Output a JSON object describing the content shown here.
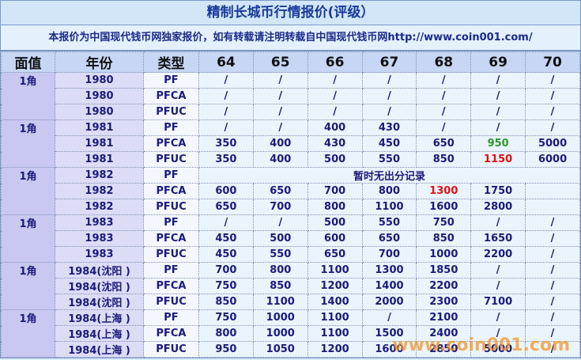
{
  "title": "精制长城币行情报价(评级）",
  "notice": "本报价为中国现代钱币网独家报价，如有转载请注明转载自中国现代钱币网http://www.coin001.com/",
  "header": [
    "面值",
    "年份",
    "类型",
    "64",
    "65",
    "66",
    "67",
    "68",
    "69",
    "70"
  ],
  "watermark": "www.coin001.com",
  "groups": [
    {
      "denomination": "1角",
      "rows": [
        {
          "year": "1980",
          "type": "PF",
          "cells": [
            "/",
            "/",
            "/",
            "/",
            "/",
            "/",
            "/"
          ]
        },
        {
          "year": "1980",
          "type": "PFCA",
          "cells": [
            "/",
            "/",
            "/",
            "/",
            "/",
            "/",
            "/"
          ]
        },
        {
          "year": "1980",
          "type": "PFUC",
          "cells": [
            "/",
            "/",
            "/",
            "/",
            "/",
            "/",
            "/"
          ]
        }
      ]
    },
    {
      "denomination": "1角",
      "rows": [
        {
          "year": "1981",
          "type": "PF",
          "cells": [
            "/",
            "/",
            400,
            430,
            "/",
            "/",
            "/"
          ]
        },
        {
          "year": "1981",
          "type": "PFCA",
          "cells": [
            350,
            400,
            430,
            450,
            650,
            {
              "value": 950,
              "color": "#2a9a2a"
            },
            5000
          ]
        },
        {
          "year": "1981",
          "type": "PFUC",
          "cells": [
            350,
            400,
            500,
            550,
            850,
            {
              "value": 1150,
              "color": "#e01010"
            },
            6000
          ]
        }
      ]
    },
    {
      "denomination": "1角",
      "rows": [
        {
          "year": "1982",
          "type": "PF",
          "note": "暂时无出分记录"
        },
        {
          "year": "1982",
          "type": "PFCA",
          "cells": [
            600,
            650,
            700,
            800,
            {
              "value": 1300,
              "color": "#e01010"
            },
            1750,
            null
          ]
        },
        {
          "year": "1982",
          "type": "PFUC",
          "cells": [
            650,
            700,
            800,
            1100,
            1600,
            2800,
            null
          ]
        }
      ]
    },
    {
      "denomination": "1角",
      "rows": [
        {
          "year": "1983",
          "type": "PF",
          "cells": [
            "/",
            "/",
            500,
            550,
            750,
            "/",
            "/"
          ]
        },
        {
          "year": "1983",
          "type": "PFCA",
          "cells": [
            450,
            500,
            600,
            650,
            850,
            1650,
            "/"
          ]
        },
        {
          "year": "1983",
          "type": "PFUC",
          "cells": [
            450,
            550,
            650,
            700,
            1000,
            2200,
            "/"
          ]
        }
      ]
    },
    {
      "denomination": "1角",
      "rows": [
        {
          "year": "1984(沈阳 )",
          "type": "PF",
          "cells": [
            700,
            800,
            1100,
            1300,
            1850,
            "/",
            "/"
          ]
        },
        {
          "year": "1984(沈阳 )",
          "type": "PFCA",
          "cells": [
            750,
            850,
            1200,
            1400,
            2200,
            "/",
            "/"
          ]
        },
        {
          "year": "1984(沈阳 )",
          "type": "PFUC",
          "cells": [
            850,
            1100,
            1400,
            2000,
            2300,
            7100,
            "/"
          ]
        }
      ]
    },
    {
      "denomination": "1角",
      "rows": [
        {
          "year": "1984(上海 )",
          "type": "PF",
          "cells": [
            750,
            1000,
            1100,
            "/",
            2100,
            "/",
            "/"
          ]
        },
        {
          "year": "1984(上海 )",
          "type": "PFCA",
          "cells": [
            800,
            1000,
            1100,
            1500,
            2400,
            "/",
            "/"
          ]
        },
        {
          "year": "1984(上海 )",
          "type": "PFUC",
          "cells": [
            950,
            1050,
            1200,
            1600,
            2850,
            5000,
            "/"
          ]
        }
      ]
    }
  ]
}
